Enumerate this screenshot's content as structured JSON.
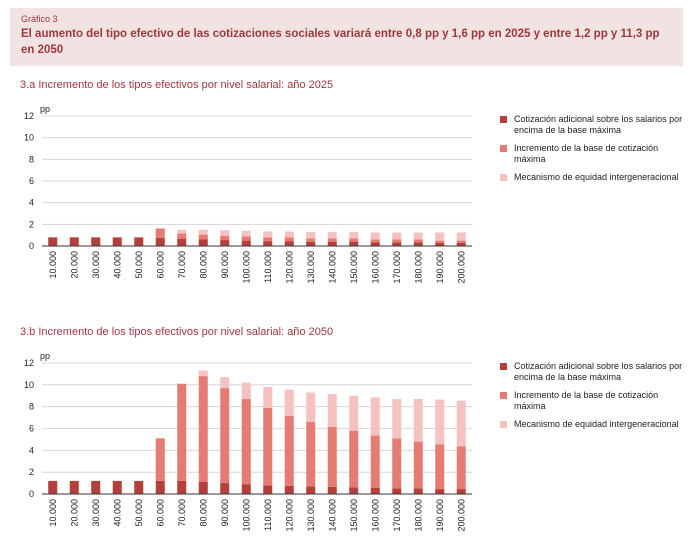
{
  "header": {
    "label": "Gráfico 3",
    "title": "El aumento del tipo efectivo de las cotizaciones sociales variará entre 0,8 pp y 1,6 pp en 2025 y entre 1,2 pp y 11,3 pp en 2050"
  },
  "colors": {
    "series1": "#b3403b",
    "series2": "#e57c73",
    "series3": "#f6c1c1",
    "grid": "#cfcfcf",
    "axis": "#333333",
    "text": "#222222",
    "accent": "#a0363f"
  },
  "chart_data": [
    {
      "type": "bar",
      "stacked": true,
      "title": "3.a  Incremento de los tipos efectivos por nivel salarial: año 2025",
      "ylabel": "pp",
      "ylim": [
        0,
        12
      ],
      "yticks": [
        0,
        2,
        4,
        6,
        8,
        10,
        12
      ],
      "grid": true,
      "legend_position": "right",
      "categories": [
        "10.000",
        "20.000",
        "30.000",
        "40.000",
        "50.000",
        "60.000",
        "70.000",
        "80.000",
        "90.000",
        "100.000",
        "110.000",
        "120.000",
        "130.000",
        "140.000",
        "150.000",
        "160.000",
        "170.000",
        "180.000",
        "190.000",
        "200.000"
      ],
      "series": [
        {
          "name": "Cotización adicional sobre los salarios por encima de la base máxima",
          "values": [
            0.8,
            0.8,
            0.8,
            0.8,
            0.8,
            0.75,
            0.65,
            0.6,
            0.55,
            0.5,
            0.45,
            0.45,
            0.4,
            0.4,
            0.4,
            0.35,
            0.35,
            0.35,
            0.3,
            0.3
          ]
        },
        {
          "name": "Incremento de la base de cotización máxima",
          "values": [
            0,
            0,
            0,
            0,
            0,
            0.85,
            0.5,
            0.45,
            0.4,
            0.4,
            0.35,
            0.35,
            0.3,
            0.3,
            0.3,
            0.25,
            0.25,
            0.25,
            0.2,
            0.2
          ]
        },
        {
          "name": "Mecanismo de equidad intergeneracional",
          "values": [
            0,
            0,
            0,
            0,
            0,
            0.05,
            0.35,
            0.45,
            0.5,
            0.5,
            0.55,
            0.55,
            0.6,
            0.6,
            0.6,
            0.65,
            0.65,
            0.65,
            0.75,
            0.75
          ]
        }
      ]
    },
    {
      "type": "bar",
      "stacked": true,
      "title": "3.b  Incremento de los tipos efectivos por nivel salarial: año 2050",
      "ylabel": "pp",
      "ylim": [
        0,
        12
      ],
      "yticks": [
        0,
        2,
        4,
        6,
        8,
        10,
        12
      ],
      "grid": true,
      "legend_position": "right",
      "categories": [
        "10.000",
        "20.000",
        "30.000",
        "40.000",
        "50.000",
        "60.000",
        "70.000",
        "80.000",
        "90.000",
        "100.000",
        "110.000",
        "120.000",
        "130.000",
        "140.000",
        "150.000",
        "160.000",
        "170.000",
        "180.000",
        "190.000",
        "200.000"
      ],
      "series": [
        {
          "name": "Cotización adicional sobre los salarios por encima de la base máxima",
          "values": [
            1.2,
            1.2,
            1.2,
            1.2,
            1.2,
            1.2,
            1.2,
            1.1,
            1.0,
            0.9,
            0.8,
            0.75,
            0.7,
            0.65,
            0.6,
            0.55,
            0.5,
            0.5,
            0.45,
            0.45
          ]
        },
        {
          "name": "Incremento de la base de cotización máxima",
          "values": [
            0,
            0,
            0,
            0,
            0,
            3.9,
            8.9,
            9.7,
            8.7,
            7.8,
            7.1,
            6.4,
            5.9,
            5.5,
            5.2,
            4.8,
            4.6,
            4.3,
            4.1,
            3.9
          ]
        },
        {
          "name": "Mecanismo de equidad intergeneracional",
          "values": [
            0,
            0,
            0,
            0,
            0,
            0,
            0,
            0.5,
            1.0,
            1.5,
            1.9,
            2.4,
            2.7,
            3.0,
            3.2,
            3.5,
            3.6,
            3.9,
            4.1,
            4.2
          ]
        }
      ]
    }
  ]
}
